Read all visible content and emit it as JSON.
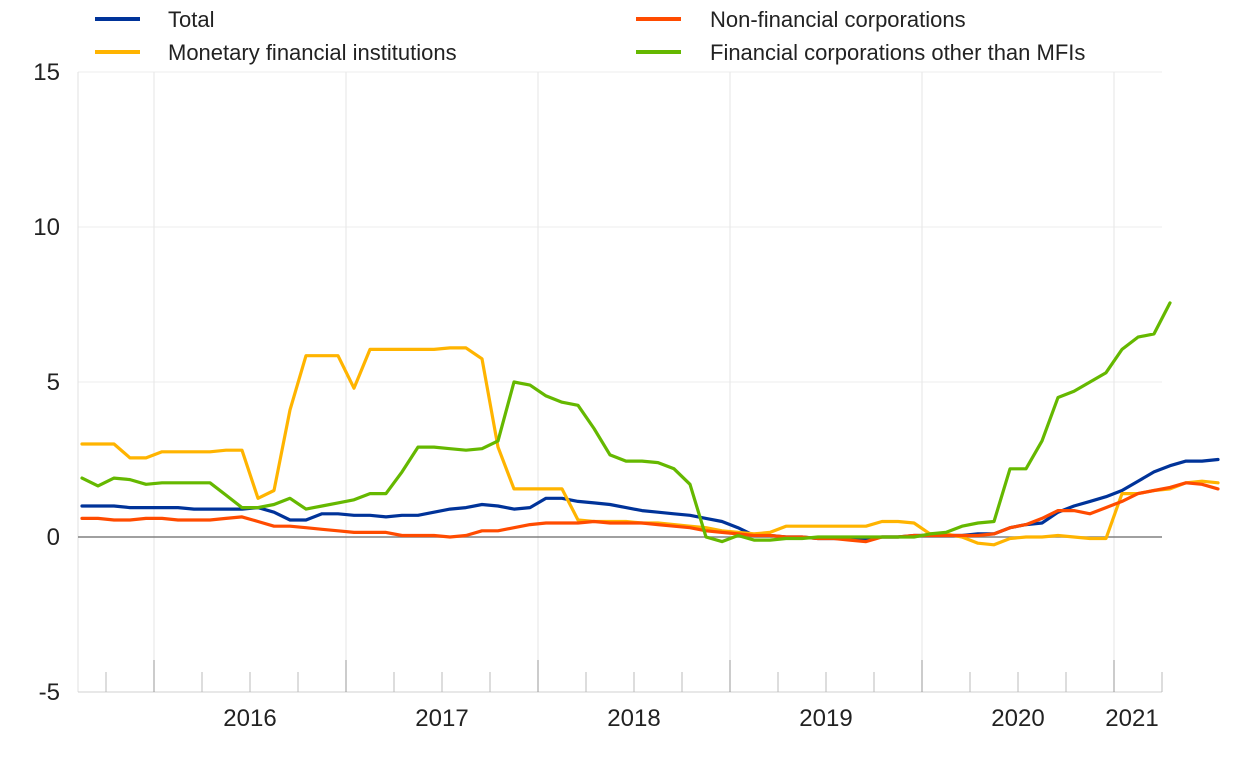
{
  "chart_data": {
    "type": "line",
    "ylim": [
      -5,
      15
    ],
    "yticks": [
      "-5",
      "0",
      "5",
      "10",
      "15"
    ],
    "ytick_values": [
      -5,
      0,
      5,
      10,
      15
    ],
    "xticks": [
      "2016",
      "2017",
      "2018",
      "2019",
      "2020",
      "2021"
    ],
    "x_start": "2015-08",
    "x_end": "2021-03",
    "legend": {
      "position": "top"
    },
    "zero_line": true,
    "grid": {
      "vertical": true,
      "horizontal": true
    },
    "series": [
      {
        "name": "Total",
        "color": "#003399",
        "values": [
          1.0,
          1.0,
          1.0,
          0.95,
          0.95,
          0.95,
          0.95,
          0.9,
          0.9,
          0.9,
          0.9,
          0.95,
          0.8,
          0.55,
          0.55,
          0.75,
          0.75,
          0.7,
          0.7,
          0.65,
          0.7,
          0.7,
          0.8,
          0.9,
          0.95,
          1.05,
          1.0,
          0.9,
          0.95,
          1.25,
          1.25,
          1.15,
          1.1,
          1.05,
          0.95,
          0.85,
          0.8,
          0.75,
          0.7,
          0.6,
          0.5,
          0.3,
          0.05,
          0.05,
          0.0,
          0.0,
          -0.05,
          -0.05,
          -0.05,
          -0.05,
          0.0,
          0.0,
          0.05,
          0.05,
          0.05,
          0.05,
          0.1,
          0.1,
          0.3,
          0.4,
          0.45,
          0.8,
          1.0,
          1.15,
          1.3,
          1.5,
          1.8,
          2.1,
          2.3,
          2.45,
          2.45,
          2.5
        ]
      },
      {
        "name": "Monetary financial institutions",
        "color": "#FFB400",
        "values": [
          3.0,
          3.0,
          3.0,
          2.55,
          2.55,
          2.75,
          2.75,
          2.75,
          2.75,
          2.8,
          2.8,
          1.25,
          1.5,
          4.1,
          5.85,
          5.85,
          5.85,
          4.8,
          6.05,
          6.05,
          6.05,
          6.05,
          6.05,
          6.1,
          6.1,
          5.75,
          2.9,
          1.55,
          1.55,
          1.55,
          1.55,
          0.55,
          0.5,
          0.5,
          0.5,
          0.45,
          0.45,
          0.4,
          0.35,
          0.3,
          0.2,
          0.15,
          0.1,
          0.15,
          0.35,
          0.35,
          0.35,
          0.35,
          0.35,
          0.35,
          0.5,
          0.5,
          0.45,
          0.1,
          0.1,
          0.0,
          -0.2,
          -0.25,
          -0.05,
          0.0,
          0.0,
          0.05,
          0.0,
          -0.05,
          -0.05,
          1.4,
          1.4,
          1.5,
          1.55,
          1.75,
          1.8,
          1.75
        ]
      },
      {
        "name": "Non-financial corporations",
        "color": "#FF4B00",
        "values": [
          0.6,
          0.6,
          0.55,
          0.55,
          0.6,
          0.6,
          0.55,
          0.55,
          0.55,
          0.6,
          0.65,
          0.5,
          0.35,
          0.35,
          0.3,
          0.25,
          0.2,
          0.15,
          0.15,
          0.15,
          0.05,
          0.05,
          0.05,
          0.0,
          0.05,
          0.2,
          0.2,
          0.3,
          0.4,
          0.45,
          0.45,
          0.45,
          0.5,
          0.45,
          0.45,
          0.45,
          0.4,
          0.35,
          0.3,
          0.2,
          0.15,
          0.1,
          0.05,
          0.05,
          0.0,
          0.0,
          -0.05,
          -0.05,
          -0.1,
          -0.15,
          0.0,
          0.0,
          0.05,
          0.05,
          0.05,
          0.05,
          0.05,
          0.1,
          0.3,
          0.4,
          0.6,
          0.85,
          0.85,
          0.75,
          0.95,
          1.15,
          1.4,
          1.5,
          1.6,
          1.75,
          1.7,
          1.55
        ]
      },
      {
        "name": "Financial corporations other than MFIs",
        "color": "#65B800",
        "values": [
          1.9,
          1.65,
          1.9,
          1.85,
          1.7,
          1.75,
          1.75,
          1.75,
          1.75,
          1.35,
          0.95,
          0.95,
          1.05,
          1.25,
          0.9,
          1.0,
          1.1,
          1.2,
          1.4,
          1.4,
          2.1,
          2.9,
          2.9,
          2.85,
          2.8,
          2.85,
          3.1,
          5.0,
          4.9,
          4.55,
          4.35,
          4.25,
          3.5,
          2.65,
          2.45,
          2.45,
          2.4,
          2.2,
          1.7,
          0.0,
          -0.15,
          0.05,
          -0.1,
          -0.1,
          -0.05,
          -0.05,
          0.0,
          0.0,
          0.0,
          0.0,
          0.0,
          0.0,
          0.0,
          0.1,
          0.15,
          0.35,
          0.45,
          0.5,
          2.2,
          2.2,
          3.1,
          4.5,
          4.7,
          5.0,
          5.3,
          6.05,
          6.45,
          6.55,
          7.55
        ]
      }
    ]
  }
}
